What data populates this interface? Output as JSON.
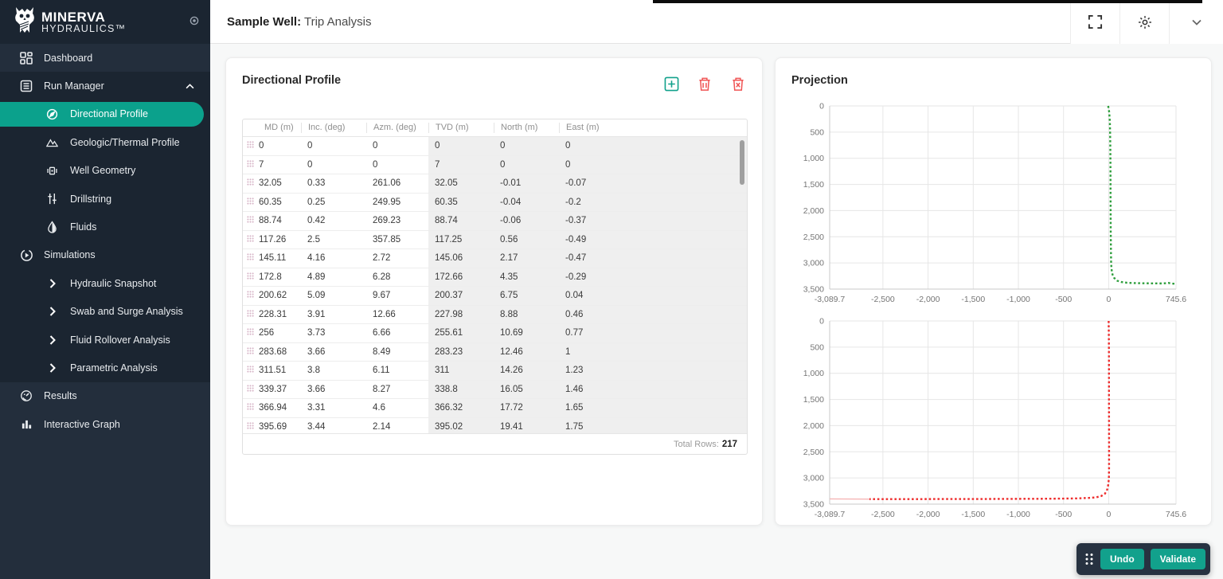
{
  "theme": {
    "accent_teal": "#0ba18c",
    "sidebar_dark": "#1b2531",
    "sidebar_base": "#232e3c",
    "danger_red": "#f05454",
    "green_series": "#2e9e3c",
    "red_series": "#ee2c2c",
    "red_series_faded": "#f5b5b5"
  },
  "sidebar": {
    "logo": {
      "line1": "MINERVA",
      "line2": "HYDRAULICS™"
    },
    "items": [
      {
        "id": "dashboard",
        "label": "Dashboard",
        "icon": "dashboard-icon",
        "level": 0,
        "zone": "light"
      },
      {
        "id": "run-manager",
        "label": "Run Manager",
        "icon": "list-icon",
        "level": 0,
        "zone": "dark",
        "chevron": "up"
      },
      {
        "id": "directional-profile",
        "label": "Directional Profile",
        "icon": "compass-icon",
        "level": 1,
        "zone": "dark",
        "selected": true
      },
      {
        "id": "geologic-thermal-profile",
        "label": "Geologic/Thermal Profile",
        "icon": "mountain-icon",
        "level": 1,
        "zone": "dark"
      },
      {
        "id": "well-geometry",
        "label": "Well Geometry",
        "icon": "well-icon",
        "level": 1,
        "zone": "dark"
      },
      {
        "id": "drillstring",
        "label": "Drillstring",
        "icon": "sliders-icon",
        "level": 1,
        "zone": "dark"
      },
      {
        "id": "fluids",
        "label": "Fluids",
        "icon": "droplet-icon",
        "level": 1,
        "zone": "dark"
      },
      {
        "id": "simulations",
        "label": "Simulations",
        "icon": "play-circle-icon",
        "level": 0,
        "zone": "dark"
      },
      {
        "id": "hydraulic-snapshot",
        "label": "Hydraulic Snapshot",
        "icon": "chevron-right-icon",
        "level": 1,
        "zone": "dark"
      },
      {
        "id": "swab-and-surge-analysis",
        "label": "Swab and Surge Analysis",
        "icon": "chevron-right-icon",
        "level": 1,
        "zone": "dark"
      },
      {
        "id": "fluid-rollover-analysis",
        "label": "Fluid Rollover Analysis",
        "icon": "chevron-right-icon",
        "level": 1,
        "zone": "dark"
      },
      {
        "id": "parametric-analysis",
        "label": "Parametric Analysis",
        "icon": "chevron-right-icon",
        "level": 1,
        "zone": "dark"
      },
      {
        "id": "results",
        "label": "Results",
        "icon": "gauge-icon",
        "level": 0,
        "zone": "light"
      },
      {
        "id": "interactive-graph",
        "label": "Interactive Graph",
        "icon": "bar-chart-icon",
        "level": 0,
        "zone": "light"
      }
    ]
  },
  "header": {
    "title_prefix": "Sample Well:",
    "title_suffix": " Trip Analysis",
    "actions": [
      "fullscreen-icon",
      "gear-icon",
      "chevron-down-icon"
    ]
  },
  "directional_profile": {
    "title": "Directional Profile",
    "toolbar": [
      "add-row-icon",
      "delete-row-icon",
      "delete-all-icon"
    ],
    "table": {
      "columns": [
        "MD (m)",
        "Inc. (deg)",
        "Azm. (deg)",
        "TVD (m)",
        "North (m)",
        "East (m)"
      ],
      "rows": [
        [
          "0",
          "0",
          "0",
          "0",
          "0",
          "0"
        ],
        [
          "7",
          "0",
          "0",
          "7",
          "0",
          "0"
        ],
        [
          "32.05",
          "0.33",
          "261.06",
          "32.05",
          "-0.01",
          "-0.07"
        ],
        [
          "60.35",
          "0.25",
          "249.95",
          "60.35",
          "-0.04",
          "-0.2"
        ],
        [
          "88.74",
          "0.42",
          "269.23",
          "88.74",
          "-0.06",
          "-0.37"
        ],
        [
          "117.26",
          "2.5",
          "357.85",
          "117.25",
          "0.56",
          "-0.49"
        ],
        [
          "145.11",
          "4.16",
          "2.72",
          "145.06",
          "2.17",
          "-0.47"
        ],
        [
          "172.8",
          "4.89",
          "6.28",
          "172.66",
          "4.35",
          "-0.29"
        ],
        [
          "200.62",
          "5.09",
          "9.67",
          "200.37",
          "6.75",
          "0.04"
        ],
        [
          "228.31",
          "3.91",
          "12.66",
          "227.98",
          "8.88",
          "0.46"
        ],
        [
          "256",
          "3.73",
          "6.66",
          "255.61",
          "10.69",
          "0.77"
        ],
        [
          "283.68",
          "3.66",
          "8.49",
          "283.23",
          "12.46",
          "1"
        ],
        [
          "311.51",
          "3.8",
          "6.11",
          "311",
          "14.26",
          "1.23"
        ],
        [
          "339.37",
          "3.66",
          "8.27",
          "338.8",
          "16.05",
          "1.46"
        ],
        [
          "366.94",
          "3.31",
          "4.6",
          "366.32",
          "17.72",
          "1.65"
        ],
        [
          "395.69",
          "3.44",
          "2.14",
          "395.02",
          "19.41",
          "1.75"
        ]
      ],
      "readonly_columns": [
        3,
        4,
        5
      ],
      "total_rows_label": "Total Rows:",
      "total_rows_value": "217"
    }
  },
  "projection": {
    "title": "Projection"
  },
  "chart_data": [
    {
      "type": "line",
      "title": "Projection - East vs TVD",
      "xlim": [
        -3089.7,
        745.6
      ],
      "ylim": [
        0,
        3500
      ],
      "y_inverted": true,
      "grid": true,
      "x_tick_values": [
        -3089.7,
        -2500,
        -2000,
        -1500,
        -1000,
        -500,
        0,
        745.6
      ],
      "x_tick_labels": [
        "-3,089.7",
        "-2,500",
        "-2,000",
        "-1,500",
        "-1,000",
        "-500",
        "0",
        "745.6"
      ],
      "x_grid_values": [
        -2500,
        -2000,
        -1500,
        -1000,
        -500,
        0
      ],
      "y_tick_values": [
        0,
        500,
        1000,
        1500,
        2000,
        2500,
        3000,
        3500
      ],
      "y_tick_labels": [
        "0",
        "500",
        "1,000",
        "1,500",
        "2,000",
        "2,500",
        "3,000",
        "3,500"
      ],
      "series": [
        {
          "name": "east-projection",
          "color": "#2e9e3c",
          "style": "dotted",
          "width": 2.4,
          "points": [
            [
              -6,
              0
            ],
            [
              6,
              120
            ],
            [
              13,
              300
            ],
            [
              16,
              500
            ],
            [
              18,
              800
            ],
            [
              20,
              1200
            ],
            [
              21,
              1800
            ],
            [
              23,
              2400
            ],
            [
              25,
              2800
            ],
            [
              27,
              3000
            ],
            [
              31,
              3120
            ],
            [
              42,
              3220
            ],
            [
              62,
              3290
            ],
            [
              95,
              3340
            ],
            [
              140,
              3365
            ],
            [
              200,
              3378
            ],
            [
              280,
              3385
            ],
            [
              380,
              3389
            ],
            [
              500,
              3391
            ],
            [
              600,
              3392
            ],
            [
              660,
              3381
            ],
            [
              700,
              3396
            ],
            [
              745,
              3395
            ]
          ]
        }
      ]
    },
    {
      "type": "line",
      "title": "Projection - North vs TVD",
      "xlim": [
        -3089.7,
        745.6
      ],
      "ylim": [
        0,
        3500
      ],
      "y_inverted": true,
      "grid": true,
      "x_tick_values": [
        -3089.7,
        -2500,
        -2000,
        -1500,
        -1000,
        -500,
        0,
        745.6
      ],
      "x_tick_labels": [
        "-3,089.7",
        "-2,500",
        "-2,000",
        "-1,500",
        "-1,000",
        "-500",
        "0",
        "745.6"
      ],
      "x_grid_values": [
        -2500,
        -2000,
        -1500,
        -1000,
        -500,
        0
      ],
      "y_tick_values": [
        0,
        500,
        1000,
        1500,
        2000,
        2500,
        3000,
        3500
      ],
      "y_tick_labels": [
        "0",
        "500",
        "1,000",
        "1,500",
        "2,000",
        "2,500",
        "3,000",
        "3,500"
      ],
      "series": [
        {
          "name": "north-projection",
          "color": "#ee2c2c",
          "style": "dotted",
          "width": 2.4,
          "points": [
            [
              0,
              0
            ],
            [
              2,
              400
            ],
            [
              3,
              900
            ],
            [
              3,
              1500
            ],
            [
              4,
              2200
            ],
            [
              4,
              2800
            ],
            [
              2,
              3000
            ],
            [
              -4,
              3120
            ],
            [
              -16,
              3220
            ],
            [
              -42,
              3300
            ],
            [
              -82,
              3345
            ],
            [
              -140,
              3370
            ],
            [
              -220,
              3382
            ],
            [
              -350,
              3390
            ],
            [
              -550,
              3395
            ],
            [
              -800,
              3398
            ],
            [
              -1100,
              3400
            ],
            [
              -1500,
              3402
            ],
            [
              -1900,
              3403
            ],
            [
              -2300,
              3404
            ],
            [
              -2650,
              3404
            ]
          ]
        },
        {
          "name": "north-projection-faded",
          "color": "#f5b5b5",
          "style": "thin",
          "width": 1.4,
          "points": [
            [
              -2650,
              3404
            ],
            [
              -3089.7,
              3400
            ]
          ]
        }
      ]
    }
  ],
  "action_bar": {
    "undo_label": "Undo",
    "validate_label": "Validate"
  }
}
